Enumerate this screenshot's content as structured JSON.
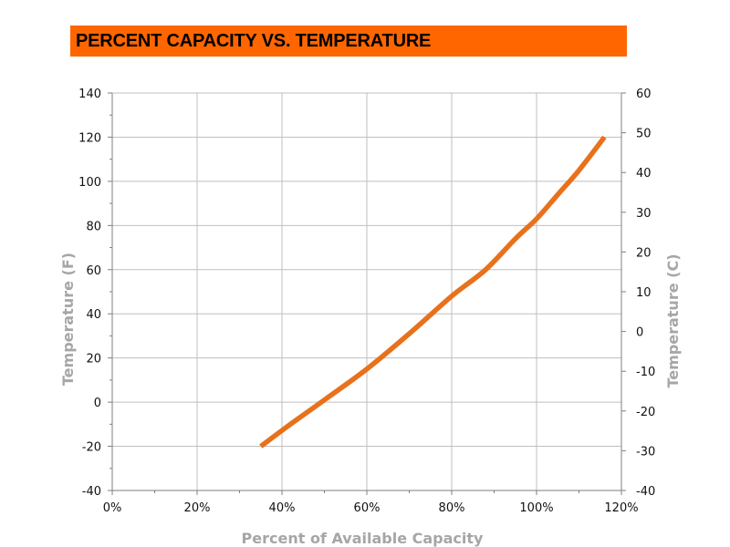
{
  "title": "PERCENT CAPACITY VS. TEMPERATURE",
  "colors": {
    "title_bg": "#ff6600",
    "line": "#e8711c",
    "grid": "#bfbfbf",
    "axis_title": "#a6a6a6"
  },
  "chart_data": {
    "type": "line",
    "title": "PERCENT CAPACITY VS. TEMPERATURE",
    "xlabel": "Percent of Available Capacity",
    "ylabel": "Temperature (F)",
    "y2label": "Temperature  (C)",
    "xlim": [
      0,
      120
    ],
    "ylim": [
      -40,
      140
    ],
    "y2lim": [
      -40,
      60
    ],
    "x_ticks": [
      "0%",
      "20%",
      "40%",
      "60%",
      "80%",
      "100%",
      "120%"
    ],
    "y_ticks": [
      "-40",
      "-20",
      "0",
      "20",
      "40",
      "60",
      "80",
      "100",
      "120",
      "140"
    ],
    "y2_ticks": [
      "-40",
      "-30",
      "-20",
      "-10",
      "0",
      "10",
      "20",
      "30",
      "40",
      "50",
      "60"
    ],
    "grid": true,
    "series": [
      {
        "x": [
          35,
          42,
          50,
          60,
          70,
          80,
          88,
          95,
          100,
          105,
          110,
          116
        ],
        "y": [
          -20,
          -10,
          1,
          15,
          31,
          48,
          60,
          74,
          83,
          94,
          105,
          120
        ]
      }
    ]
  }
}
